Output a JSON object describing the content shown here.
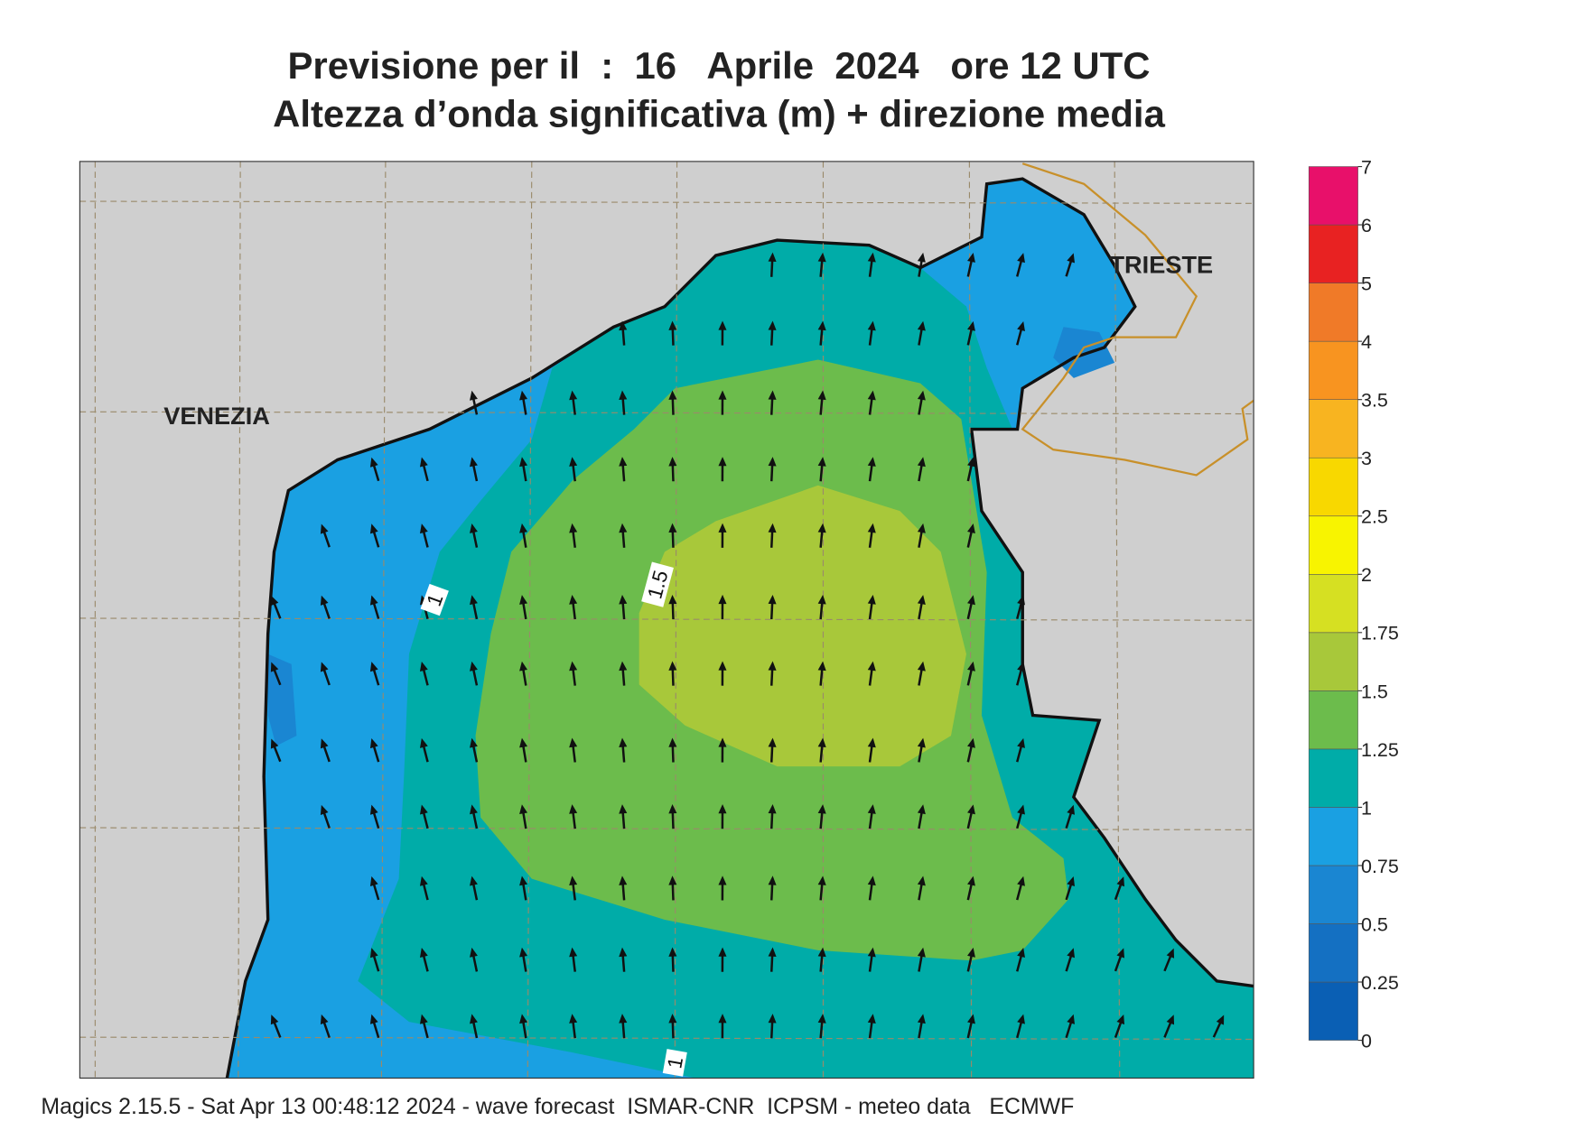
{
  "title": [
    "Previsione per il  :  16   Aprile  2024   ore 12 UTC",
    "Altezza d’onda significativa (m) + direzione media"
  ],
  "places": [
    "VENEZIA",
    "TRIESTE"
  ],
  "contour_labels": [
    "1",
    "1.5",
    "1"
  ],
  "colorbar": {
    "levels": [
      0,
      0.25,
      0.5,
      0.75,
      1,
      1.25,
      1.5,
      1.75,
      2,
      2.5,
      3,
      3.5,
      4,
      5,
      6,
      7
    ],
    "colors": [
      "#0a5fb4",
      "#1470c2",
      "#1a86d2",
      "#1aa0e2",
      "#00aca8",
      "#6cbc4c",
      "#a8c83a",
      "#d6e022",
      "#f8f400",
      "#f8d800",
      "#f8b420",
      "#f89420",
      "#f07a28",
      "#e82222",
      "#e8106a"
    ]
  },
  "footer": "Magics 2.15.5 - Sat Apr 13 00:48:12 2024 - wave forecast  ISMAR-CNR  ICPSM - meteo data   ECMWF"
}
